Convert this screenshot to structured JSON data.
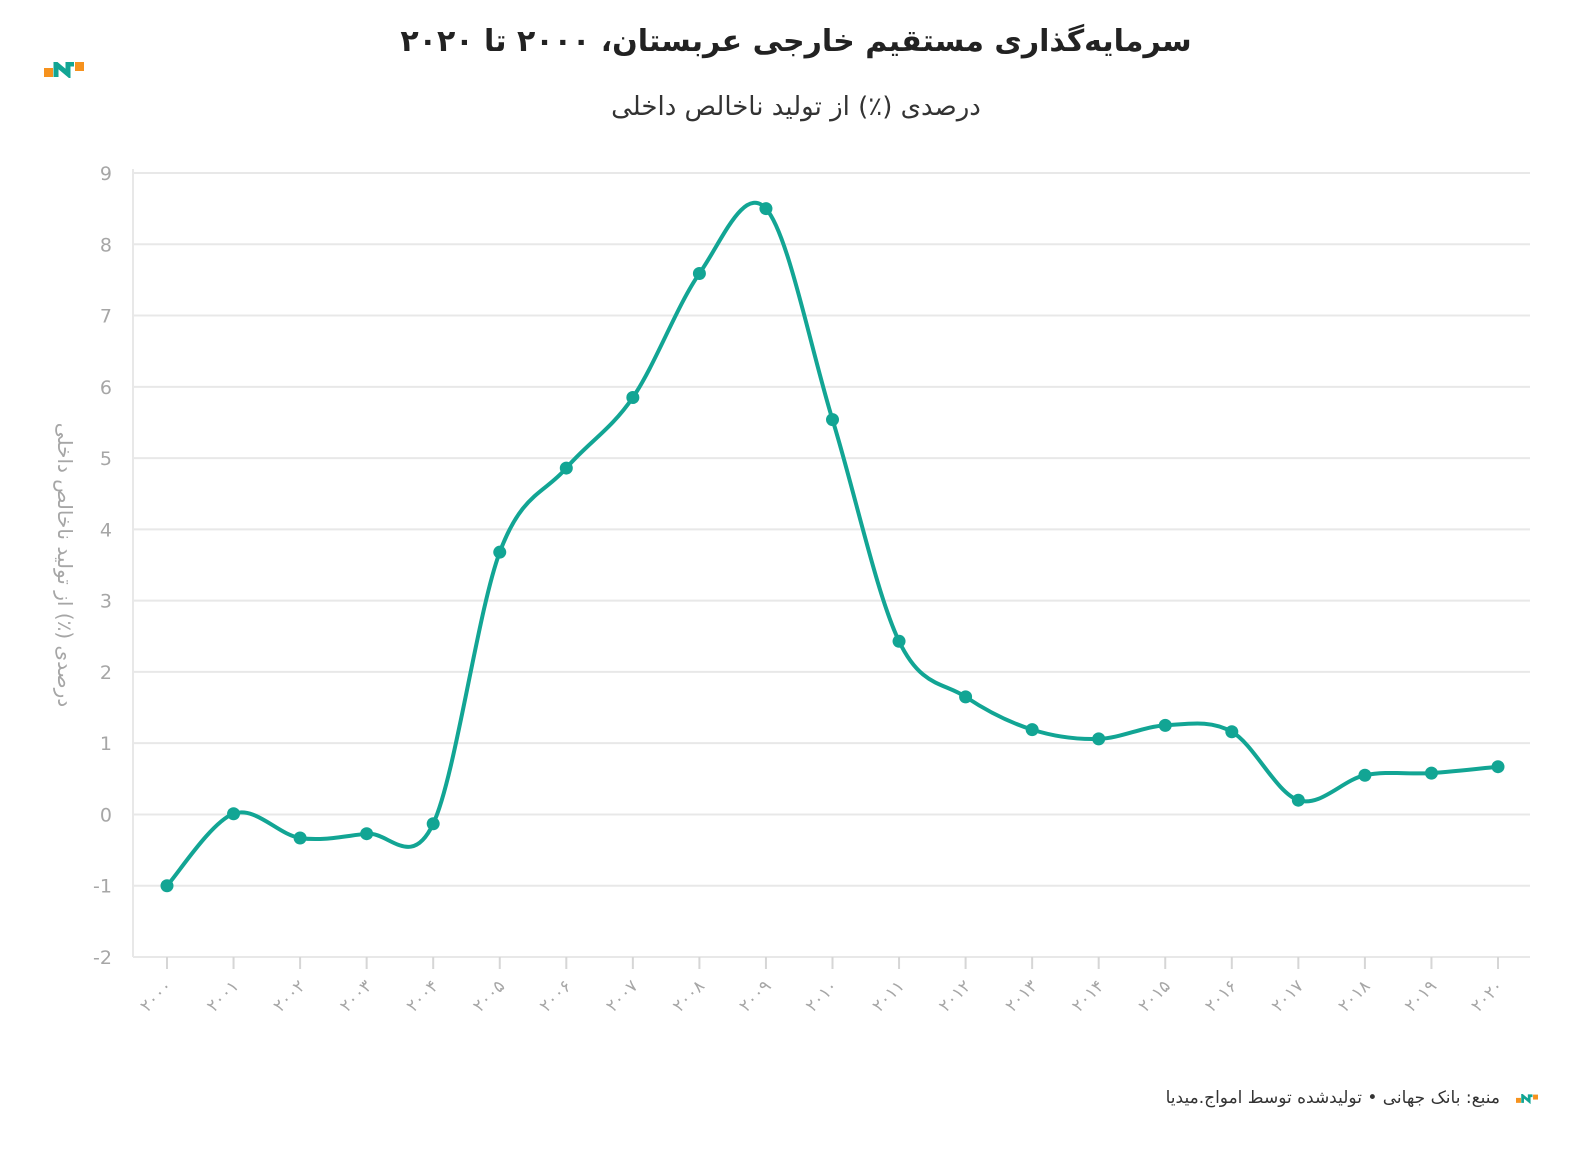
{
  "header": {
    "title": "سرمایه‌گذاری مستقیم خارجی عربستان، ۲۰۰۰ تا ۲۰۲۰",
    "subtitle": "درصدی (٪) از تولید ناخالص داخلی"
  },
  "footer": {
    "source": "منبع: بانک جهانی • تولیدشده توسط امواج.میدیا"
  },
  "colors": {
    "line": "#12a594",
    "grid": "#e8e8e8",
    "axis_text": "#a6a6a6",
    "logo_orange": "#f6921e",
    "logo_teal": "#12a594"
  },
  "chart_data": {
    "type": "line",
    "title": "سرمایه‌گذاری مستقیم خارجی عربستان، ۲۰۰۰ تا ۲۰۲۰",
    "subtitle": "درصدی (٪) از تولید ناخالص داخلی",
    "xlabel": "",
    "ylabel": "درصدی (٪) از تولید ناخالص داخلی",
    "ylim": [
      -2,
      9
    ],
    "yticks": [
      -2,
      -1,
      0,
      1,
      2,
      3,
      4,
      5,
      6,
      7,
      8,
      9
    ],
    "grid": true,
    "smooth": true,
    "categories": [
      "۲۰۰۰",
      "۲۰۰۱",
      "۲۰۰۲",
      "۲۰۰۳",
      "۲۰۰۴",
      "۲۰۰۵",
      "۲۰۰۶",
      "۲۰۰۷",
      "۲۰۰۸",
      "۲۰۰۹",
      "۲۰۱۰",
      "۲۰۱۱",
      "۲۰۱۲",
      "۲۰۱۳",
      "۲۰۱۴",
      "۲۰۱۵",
      "۲۰۱۶",
      "۲۰۱۷",
      "۲۰۱۸",
      "۲۰۱۹",
      "۲۰۲۰"
    ],
    "series": [
      {
        "values": [
          -1.0,
          0.01,
          -0.33,
          -0.27,
          -0.13,
          3.68,
          4.86,
          5.85,
          7.59,
          8.5,
          5.54,
          2.43,
          1.65,
          1.19,
          1.06,
          1.25,
          1.16,
          0.2,
          0.55,
          0.58,
          0.67
        ]
      }
    ]
  }
}
